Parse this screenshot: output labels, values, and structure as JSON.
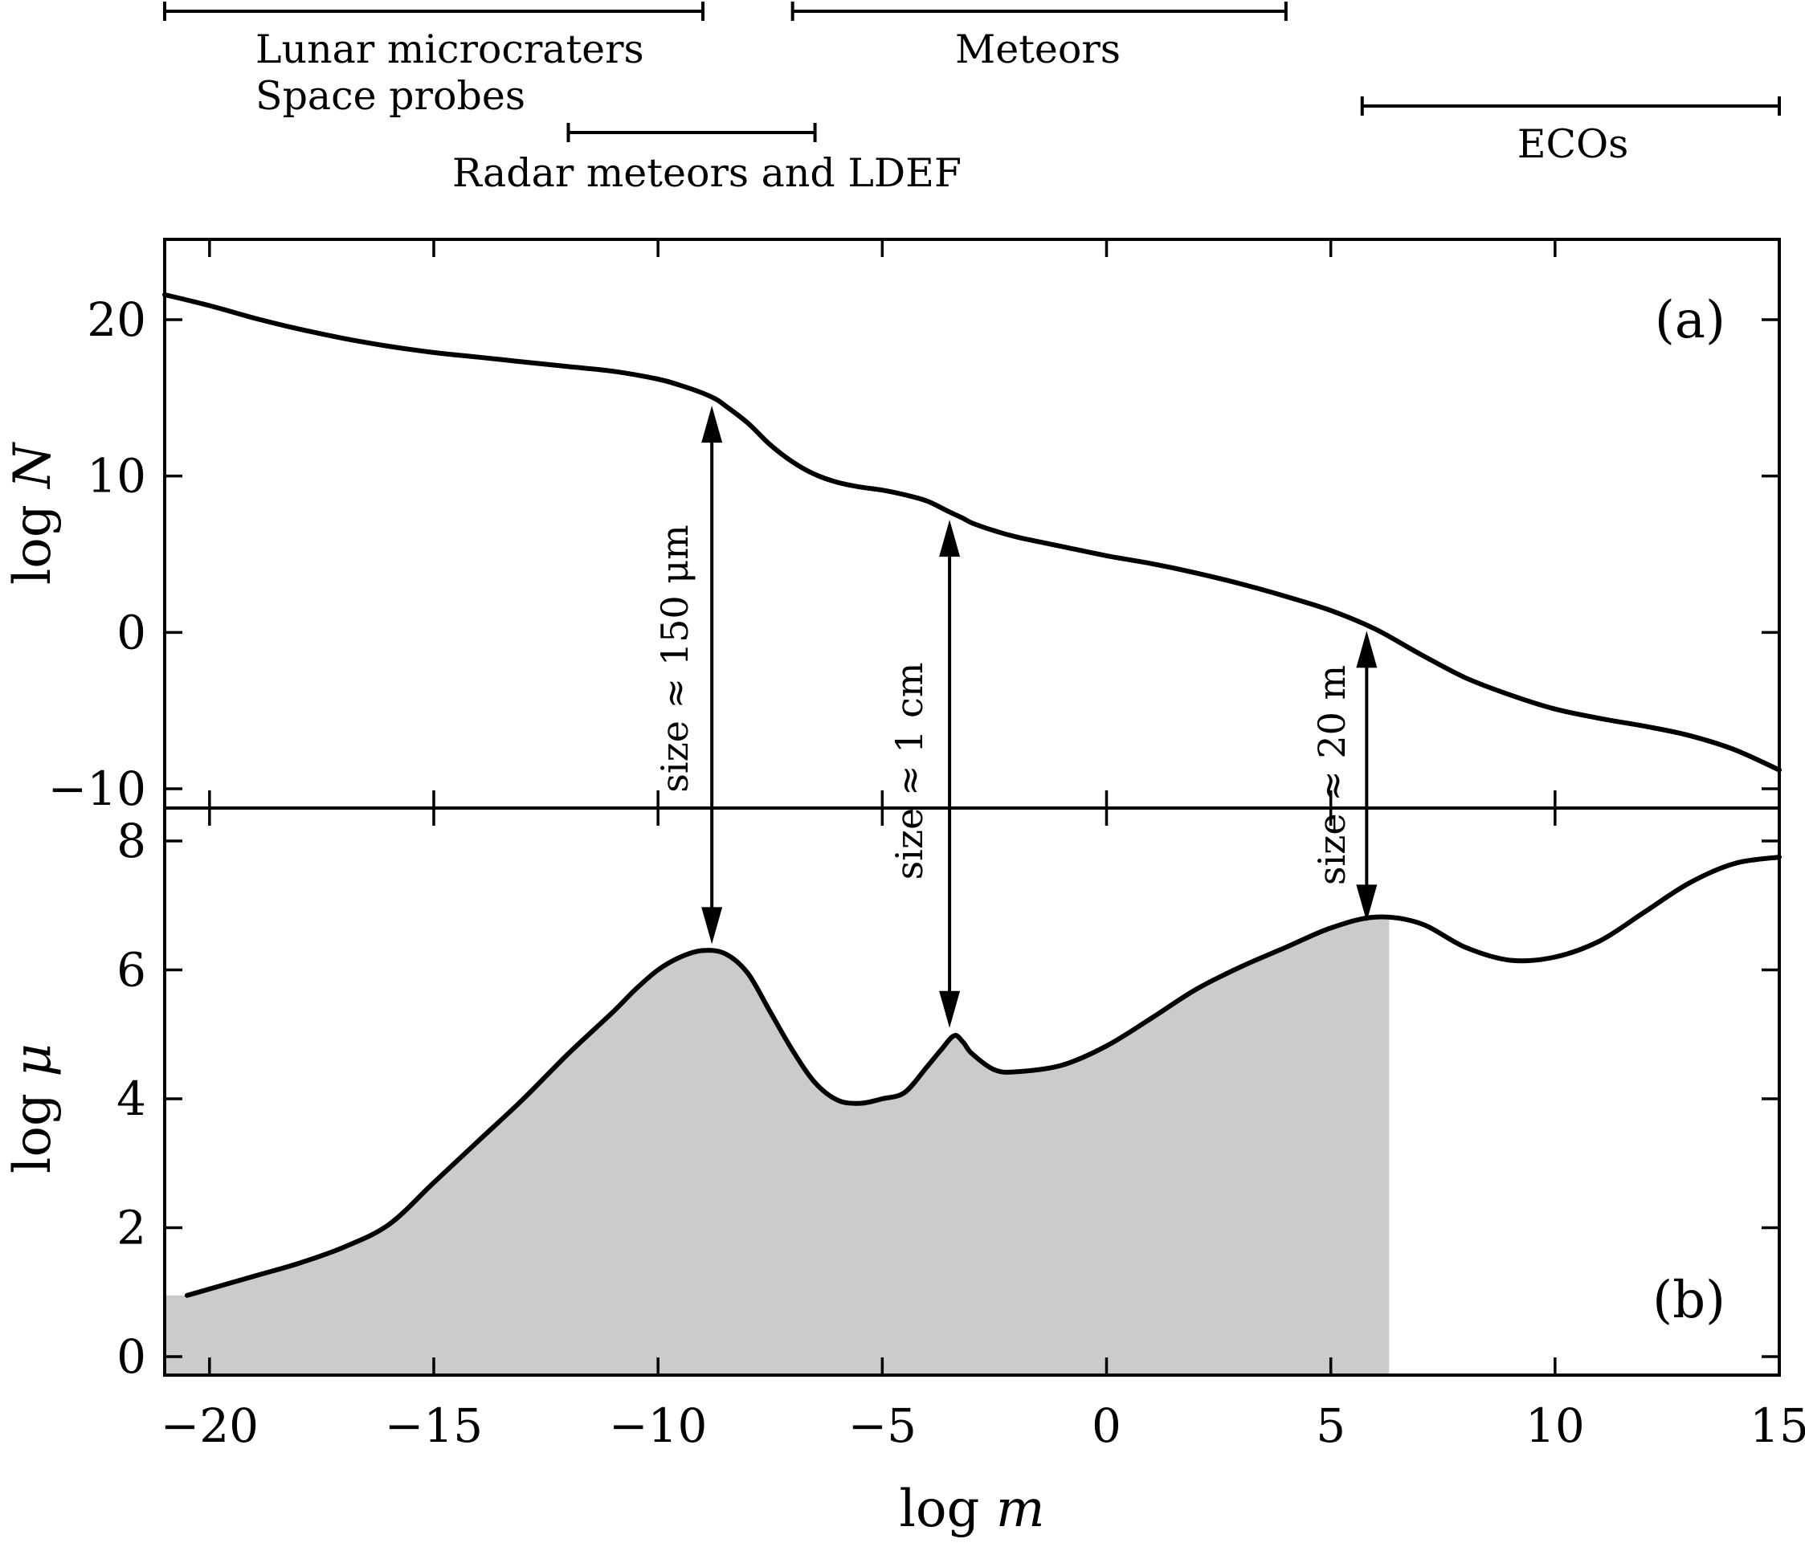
{
  "chart_data": {
    "type": "line",
    "shared_x": {
      "label_prefix": "log",
      "label_var": "m",
      "xlim": [
        -21,
        15
      ],
      "ticks": [
        -20,
        -15,
        -10,
        -5,
        0,
        5,
        10,
        15
      ],
      "tick_labels": [
        "−20",
        "−15",
        "−10",
        "−5",
        "0",
        "5",
        "10",
        "15"
      ]
    },
    "range_bars": [
      {
        "label_lines": [
          "Lunar microcraters",
          "Space probes"
        ],
        "x_range": [
          -21,
          -9.0
        ]
      },
      {
        "label_lines": [
          "Meteors"
        ],
        "x_range": [
          -7.0,
          4.0
        ]
      },
      {
        "label_lines": [
          "Radar meteors and LDEF"
        ],
        "x_range": [
          -12.0,
          -6.5
        ]
      },
      {
        "label_lines": [
          "ECOs"
        ],
        "x_range": [
          5.7,
          15
        ]
      }
    ],
    "panels": [
      {
        "tag": "(a)",
        "ylabel_prefix": "log",
        "ylabel_var": "N",
        "ylim": [
          -10,
          25
        ],
        "yticks": [
          -10,
          0,
          10,
          20
        ],
        "ytick_labels": [
          "−10",
          "0",
          "10",
          "20"
        ],
        "series": [
          {
            "x": [
              -21,
              -20,
              -19,
              -18,
              -17,
              -16,
              -15,
              -14,
              -13,
              -12,
              -11,
              -10,
              -9.5,
              -9,
              -8.7,
              -8.5,
              -8,
              -7.5,
              -7,
              -6.5,
              -6,
              -5.5,
              -5,
              -4.5,
              -4,
              -3.5,
              -3.2,
              -3,
              -2.5,
              -2,
              -1,
              0,
              1,
              2,
              3,
              4,
              5,
              6,
              7,
              8,
              9,
              10,
              11,
              12,
              13,
              14,
              15
            ],
            "y": [
              21.6,
              20.9,
              20.1,
              19.4,
              18.8,
              18.3,
              17.9,
              17.6,
              17.3,
              17.0,
              16.7,
              16.2,
              15.8,
              15.3,
              14.9,
              14.5,
              13.4,
              12.0,
              10.9,
              10.1,
              9.6,
              9.3,
              9.1,
              8.8,
              8.4,
              7.7,
              7.3,
              7.0,
              6.5,
              6.1,
              5.5,
              4.9,
              4.4,
              3.8,
              3.1,
              2.3,
              1.4,
              0.2,
              -1.4,
              -2.9,
              -4.0,
              -4.9,
              -5.5,
              -6.0,
              -6.6,
              -7.5,
              -8.8
            ]
          }
        ]
      },
      {
        "tag": "(b)",
        "ylabel_prefix": "log",
        "ylabel_var": "μ",
        "ylim": [
          -0.3,
          8.5
        ],
        "yticks": [
          0,
          2,
          4,
          6,
          8
        ],
        "ytick_labels": [
          "0",
          "2",
          "4",
          "6",
          "8"
        ],
        "shaded_below_x_max": 6.3,
        "series": [
          {
            "x": [
              -20.5,
              -19,
              -18,
              -17,
              -16,
              -15,
              -14,
              -13,
              -12,
              -11,
              -10.5,
              -10,
              -9.5,
              -9,
              -8.5,
              -8,
              -7.5,
              -7,
              -6.5,
              -6,
              -5.5,
              -5,
              -4.5,
              -4,
              -3.7,
              -3.4,
              -3.2,
              -3,
              -2.5,
              -2,
              -1,
              0,
              1,
              2,
              3,
              4,
              5,
              6,
              7,
              8,
              9,
              10,
              11,
              12,
              13,
              14,
              15
            ],
            "y": [
              0.95,
              1.25,
              1.45,
              1.7,
              2.05,
              2.7,
              3.35,
              4.0,
              4.7,
              5.35,
              5.7,
              6.0,
              6.2,
              6.3,
              6.25,
              5.95,
              5.35,
              4.75,
              4.25,
              3.98,
              3.93,
              4.0,
              4.1,
              4.5,
              4.75,
              4.98,
              4.88,
              4.7,
              4.45,
              4.42,
              4.52,
              4.82,
              5.25,
              5.7,
              6.05,
              6.35,
              6.65,
              6.82,
              6.72,
              6.35,
              6.15,
              6.2,
              6.45,
              6.9,
              7.35,
              7.65,
              7.75
            ]
          }
        ]
      }
    ],
    "annotations": [
      {
        "text": "size ≈ 150 μm",
        "x": -8.8,
        "y_top_panel_a": 14.5,
        "y_bottom_panel_b": 6.4
      },
      {
        "text": "size ≈ 1 cm",
        "x": -3.5,
        "y_top_panel_a": 7.2,
        "y_bottom_panel_b": 5.1
      },
      {
        "text": "size ≈ 20 m",
        "x": 5.8,
        "y_top_panel_a": 0.1,
        "y_bottom_panel_b": 6.75
      }
    ]
  }
}
